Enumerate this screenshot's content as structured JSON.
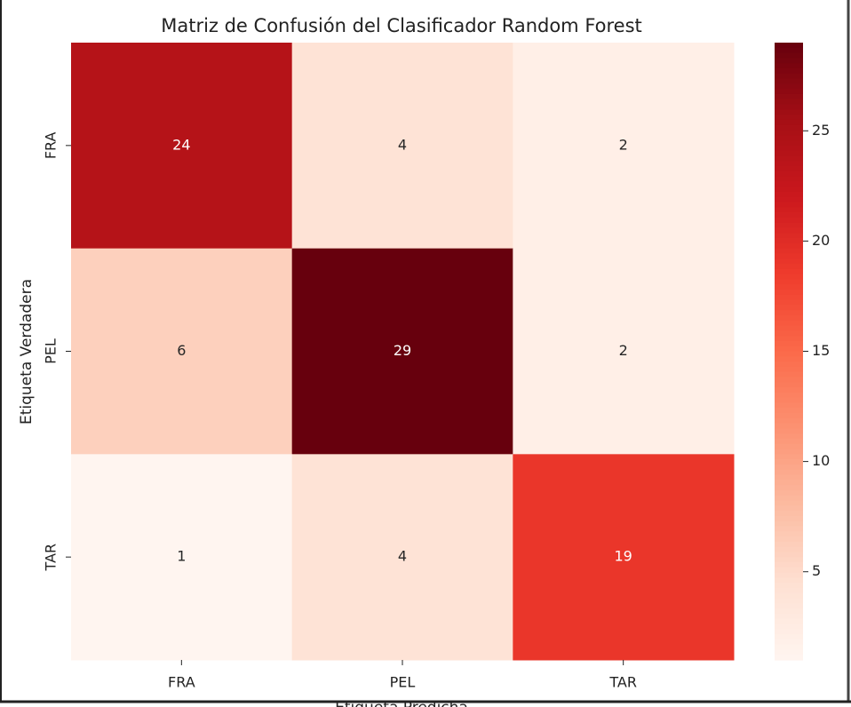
{
  "chart_data": {
    "type": "heatmap",
    "title": "Matriz de Confusión del Clasificador Random Forest",
    "xlabel": "Etiqueta Predicha",
    "ylabel": "Etiqueta Verdadera",
    "x_categories": [
      "FRA",
      "PEL",
      "TAR"
    ],
    "y_categories": [
      "FRA",
      "PEL",
      "TAR"
    ],
    "values": [
      [
        24,
        4,
        2
      ],
      [
        6,
        29,
        2
      ],
      [
        1,
        4,
        19
      ]
    ],
    "colormap": [
      "#fff5f0",
      "#fee0d2",
      "#fcbba1",
      "#fc9272",
      "#fb6a4a",
      "#ef3b2c",
      "#cb181d",
      "#a50f15",
      "#67000d"
    ],
    "zlim": [
      1,
      29
    ],
    "zticks": [
      5,
      10,
      15,
      20,
      25
    ]
  }
}
